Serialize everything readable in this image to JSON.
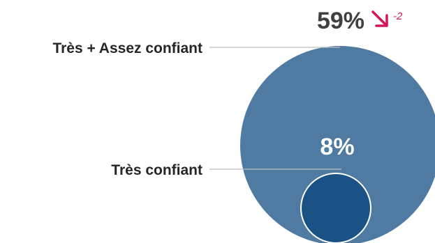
{
  "chart_data": {
    "type": "nested-bubble",
    "series": [
      {
        "name": "Très + Assez confiant",
        "value": 59,
        "value_label": "59%",
        "color": "#4f7aa2",
        "delta": -2,
        "delta_label": "-2",
        "delta_direction": "down"
      },
      {
        "name": "Très confiant",
        "value": 8,
        "value_label": "8%",
        "color": "#1a5285"
      }
    ],
    "delta_color": "#d6145a",
    "leader_line_color": "#bfbfbf"
  }
}
